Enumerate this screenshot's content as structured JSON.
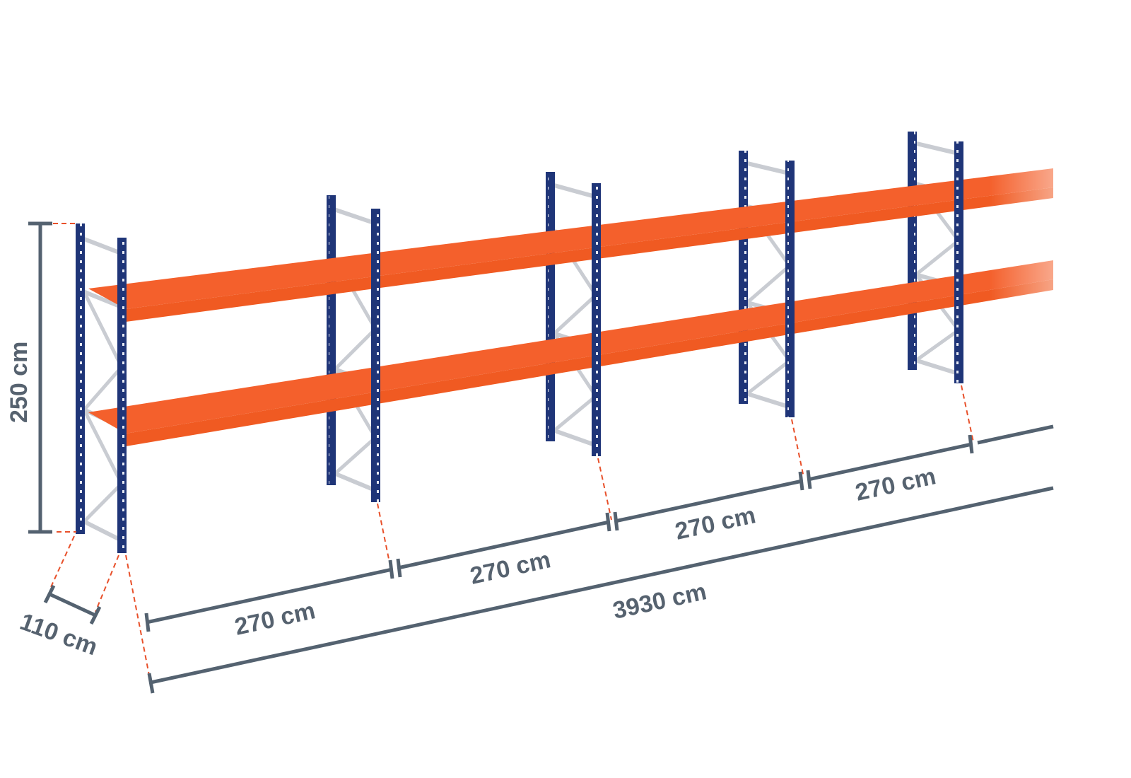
{
  "colors": {
    "upright": "#1f3578",
    "shelf": "#f4602c",
    "shelf_front": "#f05a22",
    "dimension": "#546270",
    "guide": "#e8502a",
    "brace": "#c9ccd2"
  },
  "dimensions": {
    "height": "250 cm",
    "depth": "110 cm",
    "bay_widths": [
      "270 cm",
      "270 cm",
      "270 cm",
      "270 cm"
    ],
    "total_length": "3930 cm"
  }
}
